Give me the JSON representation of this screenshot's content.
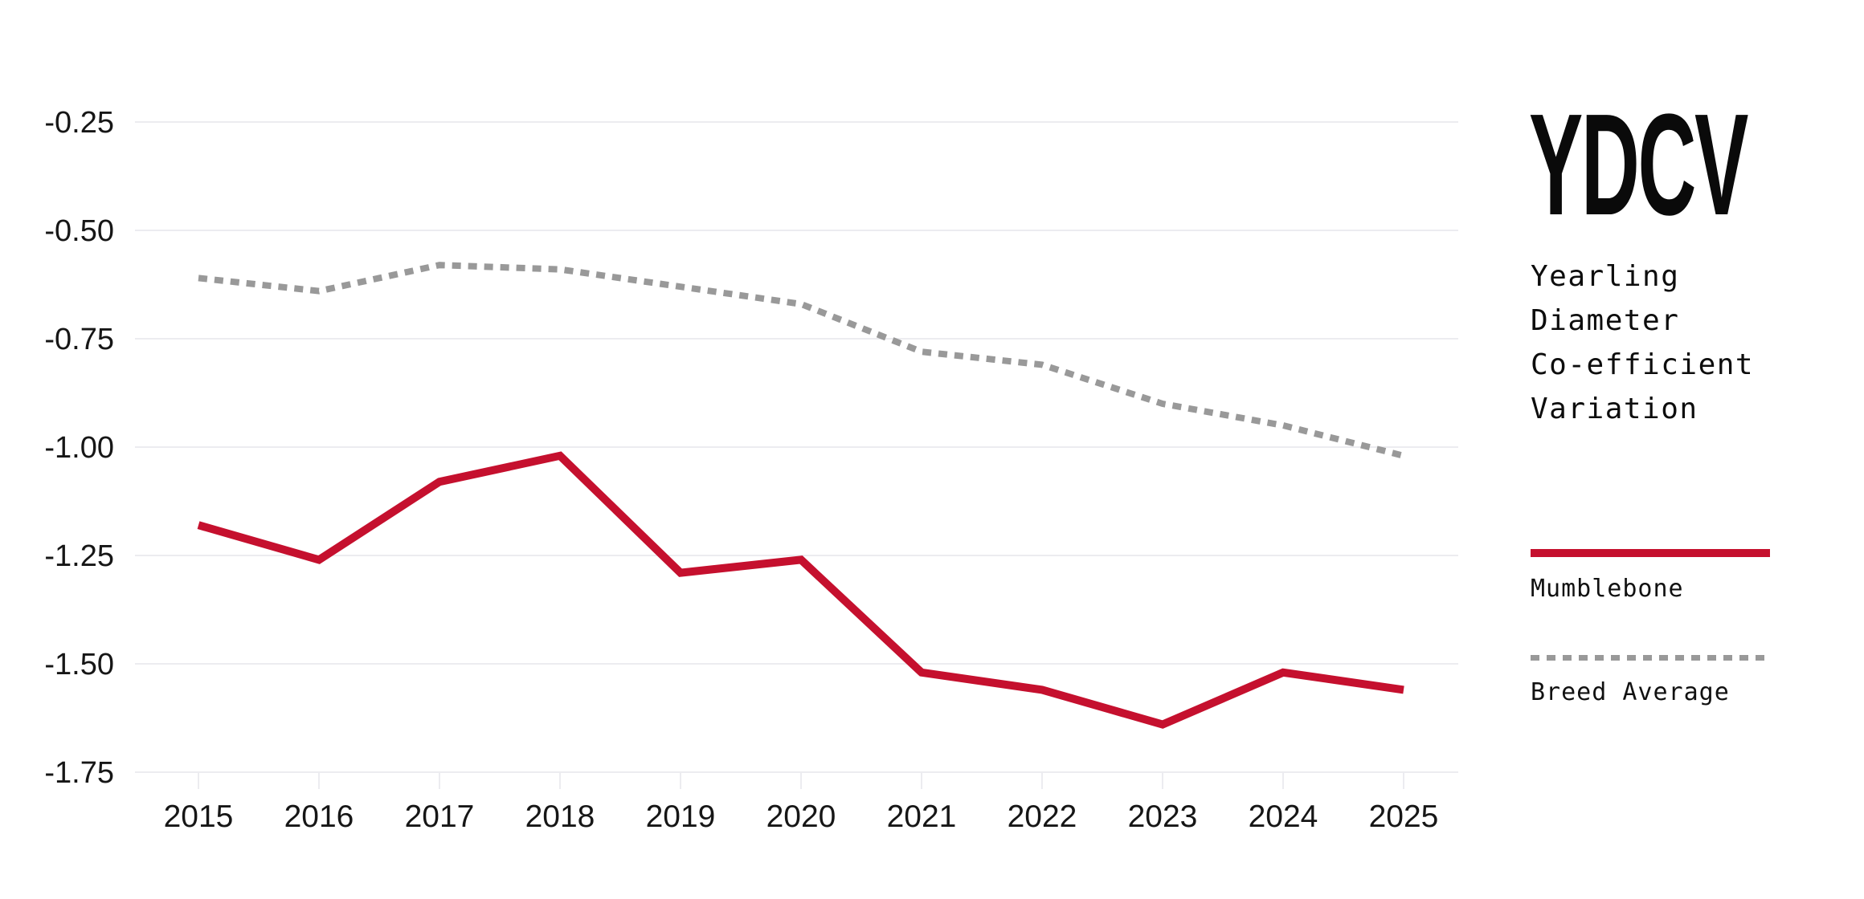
{
  "chart_data": {
    "type": "line",
    "title": "YDCV",
    "subtitle": "Yearling\nDiameter\nCo-efficient\nVariation",
    "x": [
      2015,
      2016,
      2017,
      2018,
      2019,
      2020,
      2021,
      2022,
      2023,
      2024,
      2025
    ],
    "x_labels": [
      "2015",
      "2016",
      "2017",
      "2018",
      "2019",
      "2020",
      "2021",
      "2022",
      "2023",
      "2024",
      "2025"
    ],
    "series": [
      {
        "name": "Mumblebone",
        "color": "#C5102E",
        "line_style": "solid",
        "values": [
          -1.18,
          -1.26,
          -1.08,
          -1.02,
          -1.29,
          -1.26,
          -1.52,
          -1.56,
          -1.64,
          -1.52,
          -1.56
        ]
      },
      {
        "name": "Breed Average",
        "color": "#999999",
        "line_style": "dotted",
        "values": [
          -0.61,
          -0.64,
          -0.58,
          -0.59,
          -0.63,
          -0.67,
          -0.78,
          -0.81,
          -0.9,
          -0.95,
          -1.02
        ]
      }
    ],
    "ylim": [
      -1.75,
      -0.25
    ],
    "yticks": [
      {
        "value": -0.25,
        "label": "-0.25"
      },
      {
        "value": -0.5,
        "label": "-0.50"
      },
      {
        "value": -0.75,
        "label": "-0.75"
      },
      {
        "value": -1.0,
        "label": "-1.00"
      },
      {
        "value": -1.25,
        "label": "-1.25"
      },
      {
        "value": -1.5,
        "label": "-1.50"
      },
      {
        "value": -1.75,
        "label": "-1.75"
      }
    ],
    "grid": "horizontal",
    "legend_position": "right",
    "grid_color": "#ECECF0",
    "axis_text_color": "#161616",
    "background_color": "#FFFFFF"
  }
}
